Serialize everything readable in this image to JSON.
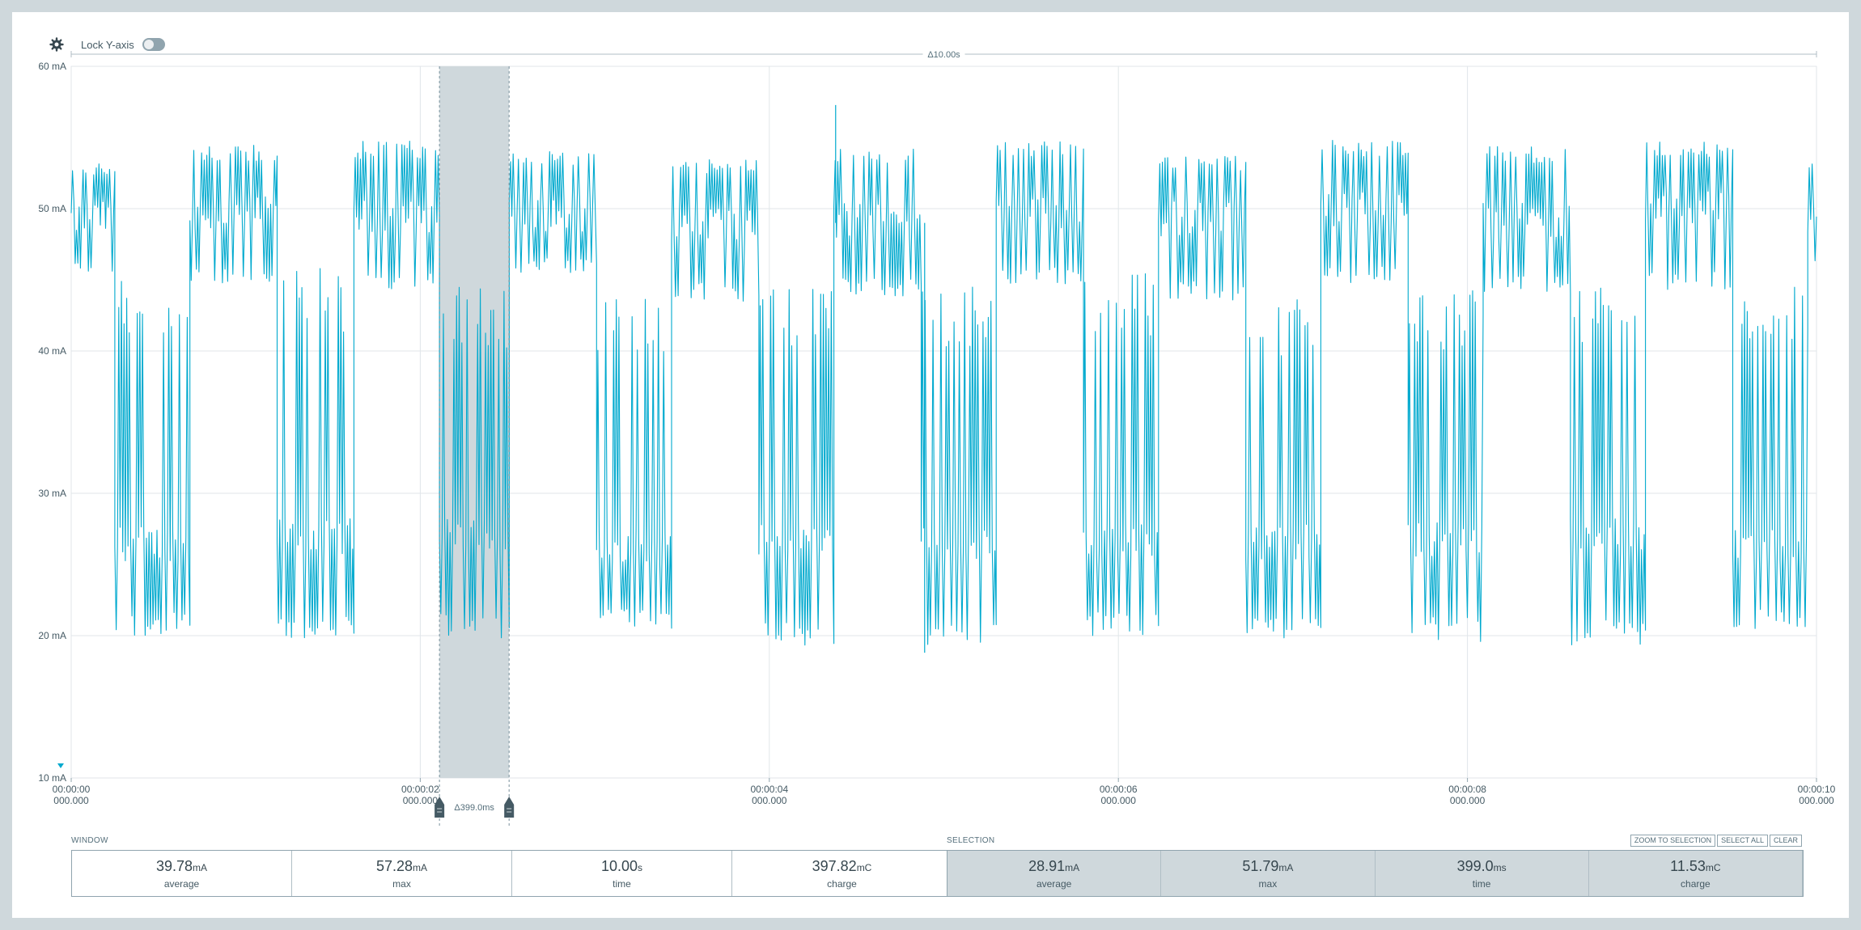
{
  "toolbar": {
    "gear_icon": "gear-icon",
    "lock_label": "Lock Y-axis",
    "lock_enabled": false
  },
  "chart_data": {
    "type": "line",
    "ylabel_unit": "mA",
    "ylim": [
      10,
      60
    ],
    "yticks": [
      10,
      20,
      30,
      40,
      50,
      60
    ],
    "ytick_labels": [
      "10 mA",
      "20 mA",
      "30 mA",
      "40 mA",
      "50 mA",
      "60 mA"
    ],
    "xlim_s": [
      0,
      10
    ],
    "xticks_s": [
      0,
      2,
      4,
      6,
      8,
      10
    ],
    "xtick_labels": [
      [
        "00:00:00",
        "000.000"
      ],
      [
        "00:00:02",
        "000.000"
      ],
      [
        "00:00:04",
        "000.000"
      ],
      [
        "00:00:06",
        "000.000"
      ],
      [
        "00:00:08",
        "000.000"
      ],
      [
        "00:00:10",
        "000.000"
      ]
    ],
    "window_delta_label": "Δ10.00s",
    "selection": {
      "start_s": 2.11,
      "end_s": 2.509,
      "label": "Δ399.0ms"
    },
    "grid": true,
    "series": [
      {
        "color": "#00a9ce",
        "pattern": {
          "period_s": 0.93,
          "segments": [
            {
              "from_s": 0.0,
              "to_s": 0.25,
              "base": 49.3,
              "high": 53.3,
              "low": 45.5
            },
            {
              "from_s": 0.25,
              "to_s": 0.68,
              "base": 26.5,
              "high": 45.0,
              "low": 20.0
            },
            {
              "from_s": 0.68,
              "to_s": 1.18,
              "base": 49.6,
              "high": 54.5,
              "low": 44.5
            },
            {
              "from_s": 1.18,
              "to_s": 1.62,
              "base": 27.0,
              "high": 46.0,
              "low": 19.5
            }
          ]
        },
        "blocks": [
          {
            "from_s": 0.0,
            "to_s": 0.25,
            "base": 49.3,
            "high": 53.3,
            "low": 45.5
          },
          {
            "from_s": 0.25,
            "to_s": 0.68,
            "base": 26.5,
            "high": 45.0,
            "low": 20.0
          },
          {
            "from_s": 0.68,
            "to_s": 1.18,
            "base": 49.6,
            "high": 54.5,
            "low": 44.5
          },
          {
            "from_s": 1.18,
            "to_s": 1.62,
            "base": 27.0,
            "high": 46.0,
            "low": 19.5
          },
          {
            "from_s": 1.62,
            "to_s": 2.11,
            "base": 49.5,
            "high": 54.8,
            "low": 44.3
          },
          {
            "from_s": 2.11,
            "to_s": 2.51,
            "base": 27.0,
            "high": 44.5,
            "low": 19.8
          },
          {
            "from_s": 2.51,
            "to_s": 3.01,
            "base": 49.6,
            "high": 54.2,
            "low": 45.5
          },
          {
            "from_s": 3.01,
            "to_s": 3.44,
            "base": 26.3,
            "high": 44.0,
            "low": 20.5
          },
          {
            "from_s": 3.44,
            "to_s": 3.94,
            "base": 49.0,
            "high": 53.5,
            "low": 43.5
          },
          {
            "from_s": 3.94,
            "to_s": 4.37,
            "base": 26.8,
            "high": 44.5,
            "low": 19.3
          },
          {
            "from_s": 4.37,
            "to_s": 4.87,
            "base": 49.2,
            "high": 54.5,
            "low": 43.8
          },
          {
            "from_s": 4.87,
            "to_s": 5.3,
            "base": 26.5,
            "high": 44.5,
            "low": 19.0
          },
          {
            "from_s": 5.3,
            "to_s": 5.8,
            "base": 49.6,
            "high": 54.8,
            "low": 44.7
          },
          {
            "from_s": 5.8,
            "to_s": 6.23,
            "base": 26.8,
            "high": 45.5,
            "low": 20.0
          },
          {
            "from_s": 6.23,
            "to_s": 6.73,
            "base": 49.3,
            "high": 53.8,
            "low": 43.5
          },
          {
            "from_s": 6.73,
            "to_s": 7.16,
            "base": 26.6,
            "high": 44.0,
            "low": 19.8
          },
          {
            "from_s": 7.16,
            "to_s": 7.66,
            "base": 50.0,
            "high": 54.8,
            "low": 44.8
          },
          {
            "from_s": 7.66,
            "to_s": 8.09,
            "base": 26.8,
            "high": 44.5,
            "low": 19.5
          },
          {
            "from_s": 8.09,
            "to_s": 8.59,
            "base": 49.2,
            "high": 54.5,
            "low": 44.0
          },
          {
            "from_s": 8.59,
            "to_s": 9.02,
            "base": 27.0,
            "high": 44.5,
            "low": 19.3
          },
          {
            "from_s": 9.02,
            "to_s": 9.52,
            "base": 50.0,
            "high": 54.8,
            "low": 44.3
          },
          {
            "from_s": 9.52,
            "to_s": 9.95,
            "base": 26.5,
            "high": 45.0,
            "low": 20.5
          },
          {
            "from_s": 9.95,
            "to_s": 10.0,
            "base": 49.5,
            "high": 53.5,
            "low": 45.5
          }
        ],
        "spikes": [
          {
            "x_s": 4.38,
            "y": 57.28
          },
          {
            "x_s": 4.89,
            "y": 18.8
          }
        ]
      }
    ]
  },
  "window": {
    "section_label": "WINDOW",
    "stats": [
      {
        "value": "39.78",
        "unit": "mA",
        "label": "average"
      },
      {
        "value": "57.28",
        "unit": "mA",
        "label": "max"
      },
      {
        "value": "10.00",
        "unit": "s",
        "label": "time"
      },
      {
        "value": "397.82",
        "unit": "mC",
        "label": "charge"
      }
    ]
  },
  "selection_stats": {
    "section_label": "SELECTION",
    "buttons": [
      "ZOOM TO SELECTION",
      "SELECT ALL",
      "CLEAR"
    ],
    "stats": [
      {
        "value": "28.91",
        "unit": "mA",
        "label": "average"
      },
      {
        "value": "51.79",
        "unit": "mA",
        "label": "max"
      },
      {
        "value": "399.0",
        "unit": "ms",
        "label": "time"
      },
      {
        "value": "11.53",
        "unit": "mC",
        "label": "charge"
      }
    ]
  }
}
